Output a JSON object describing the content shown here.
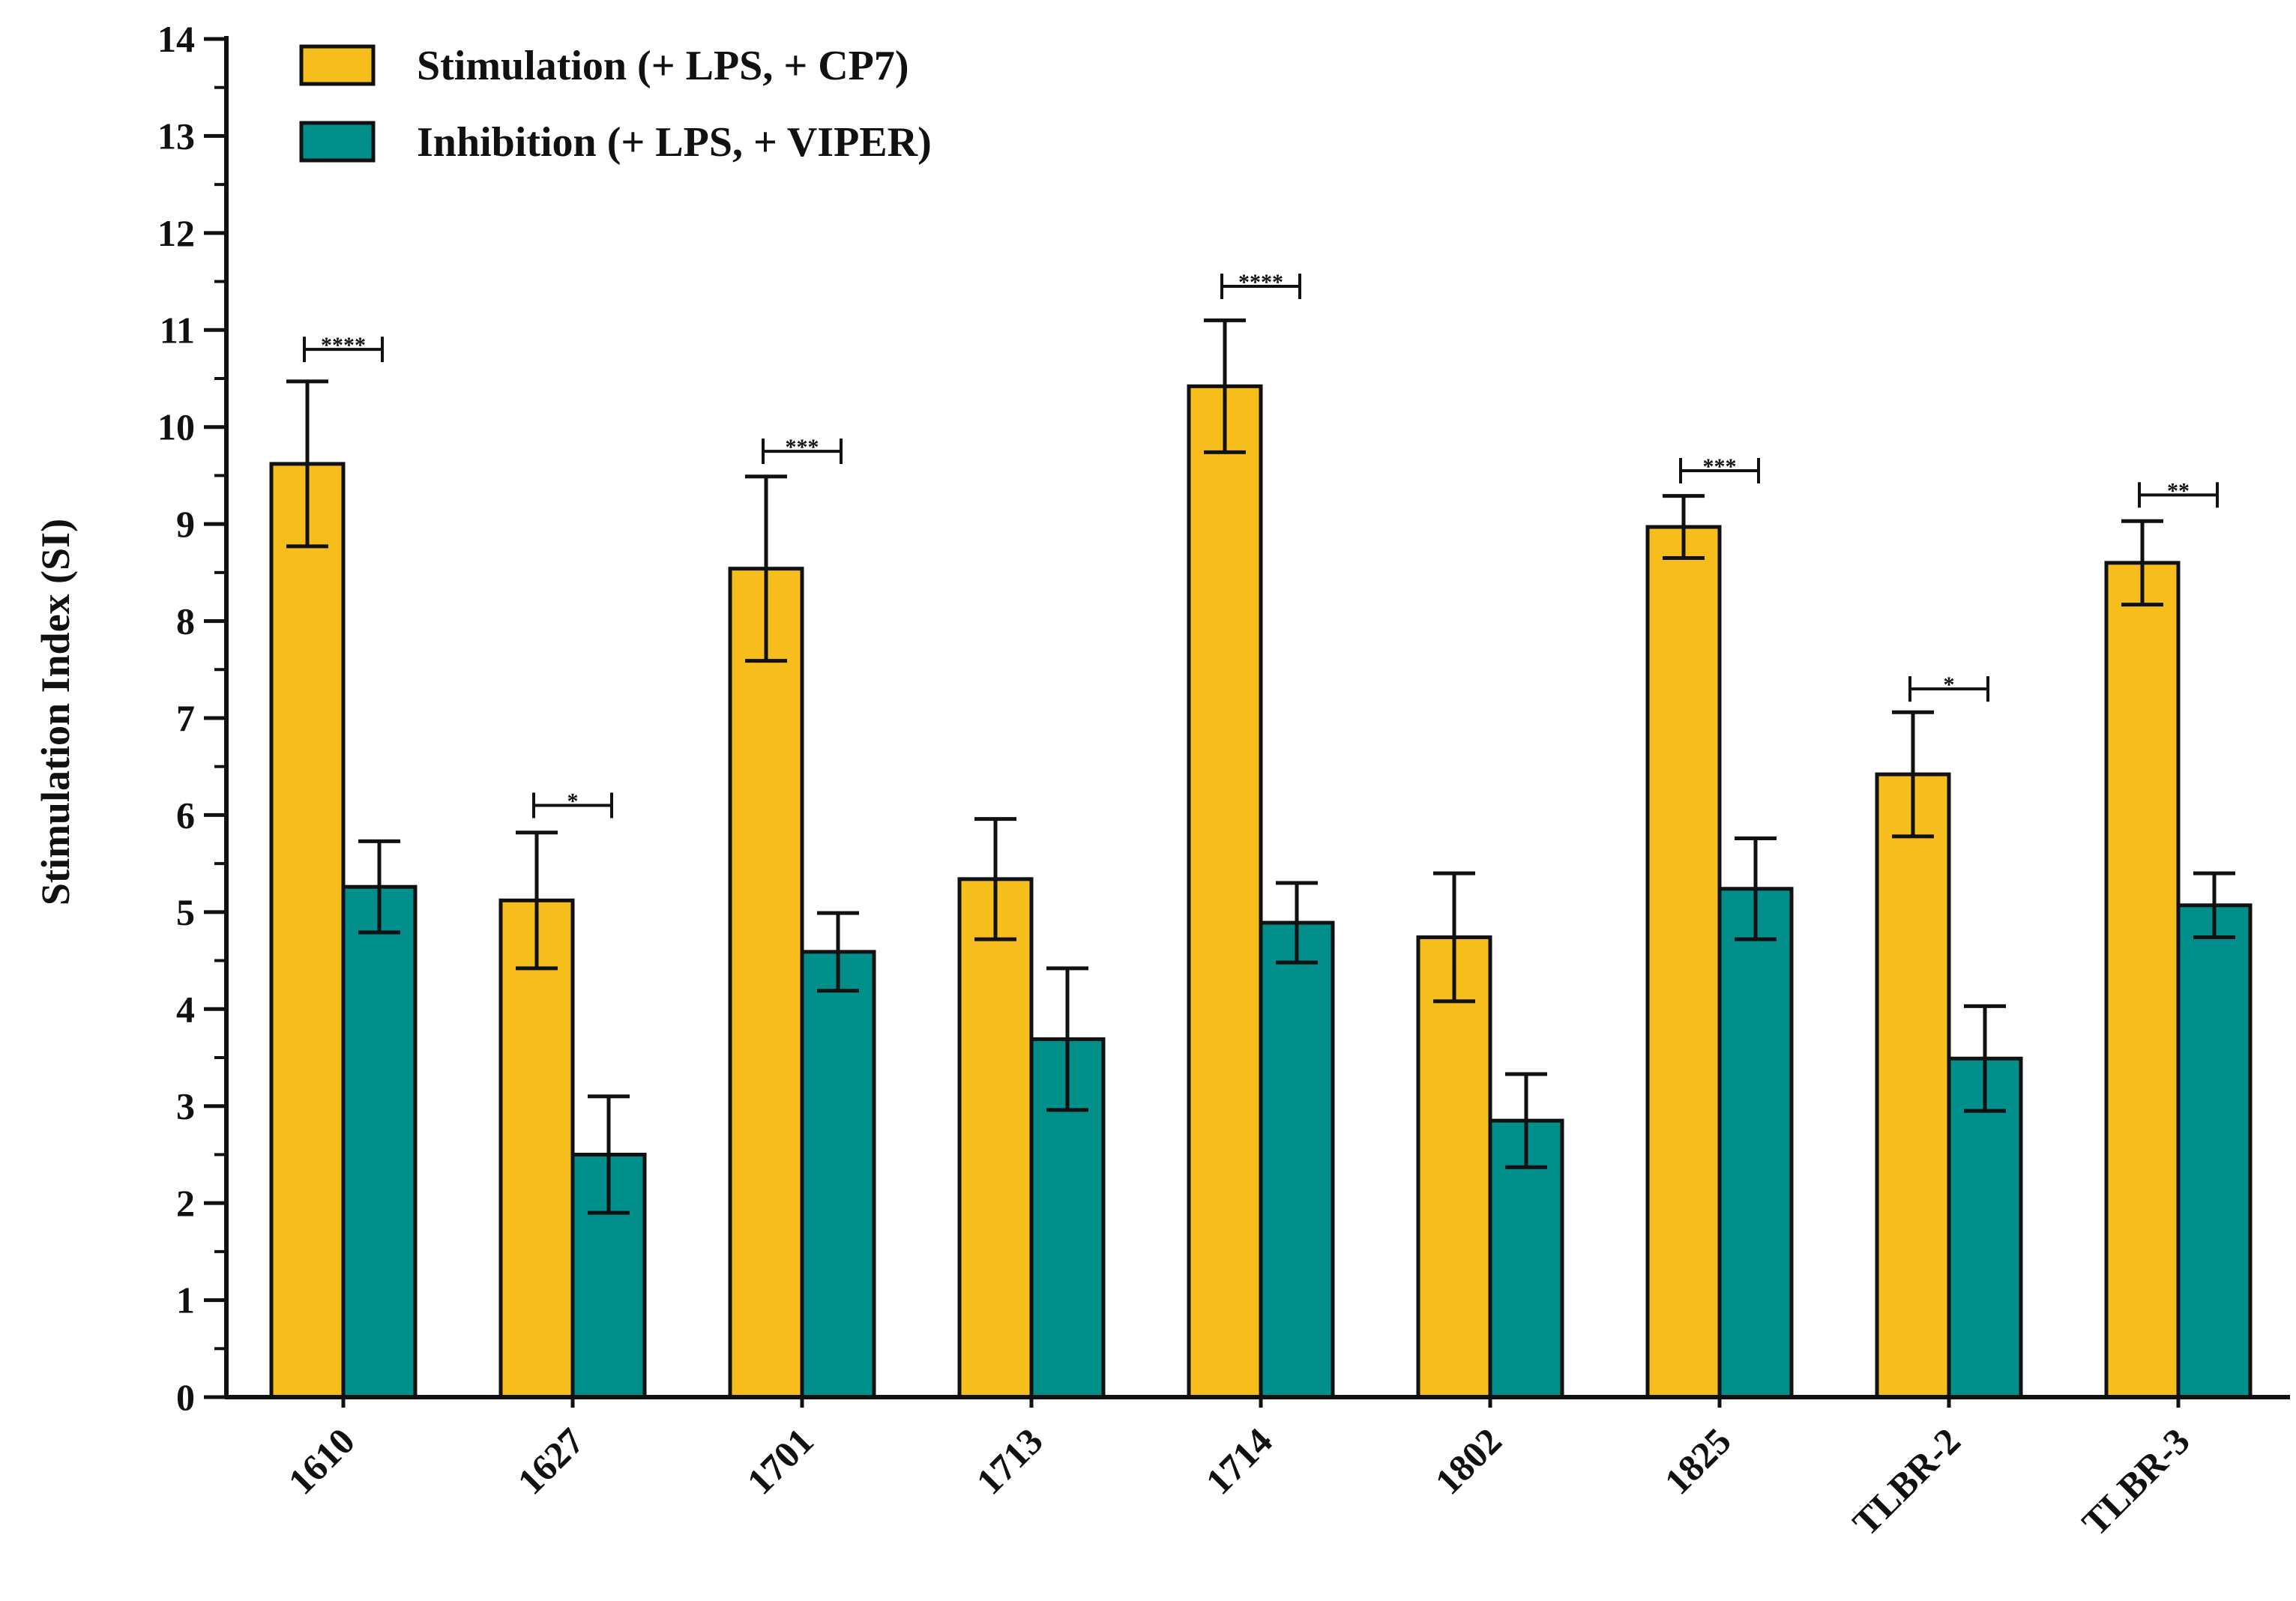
{
  "chart_data": {
    "type": "bar",
    "title": "",
    "xlabel": "",
    "ylabel": "Stimulation Index (SI)",
    "ylim": [
      0,
      14
    ],
    "yticks": [
      0,
      1,
      2,
      3,
      4,
      5,
      6,
      7,
      8,
      9,
      10,
      11,
      12,
      13,
      14
    ],
    "grid": false,
    "legend_position": "top-left",
    "categories": [
      "1610",
      "1627",
      "1701",
      "1713",
      "1714",
      "1802",
      "1825",
      "TLBR-2",
      "TLBR-3"
    ],
    "series": [
      {
        "name": "Stimulation (+ LPS, + CP7)",
        "color": "#F5BE1D",
        "values": [
          9.62,
          5.12,
          8.54,
          5.34,
          10.42,
          4.74,
          8.97,
          6.42,
          8.6
        ],
        "errors": [
          0.85,
          0.7,
          0.95,
          0.62,
          0.68,
          0.66,
          0.32,
          0.64,
          0.43
        ]
      },
      {
        "name": "Inhibition (+ LPS, + VIPER)",
        "color": "#008F8A",
        "values": [
          5.26,
          2.5,
          4.59,
          3.69,
          4.89,
          2.85,
          5.24,
          3.49,
          5.07
        ],
        "errors": [
          0.47,
          0.6,
          0.4,
          0.73,
          0.41,
          0.48,
          0.52,
          0.54,
          0.33
        ]
      }
    ],
    "significance": [
      {
        "category": "1610",
        "label": "****",
        "y": 10.8
      },
      {
        "category": "1627",
        "label": "*",
        "y": 6.1
      },
      {
        "category": "1701",
        "label": "***",
        "y": 9.75
      },
      {
        "category": "1714",
        "label": "****",
        "y": 11.45
      },
      {
        "category": "1825",
        "label": "***",
        "y": 9.55
      },
      {
        "category": "TLBR-2",
        "label": "*",
        "y": 7.3
      },
      {
        "category": "TLBR-3",
        "label": "**",
        "y": 9.3
      }
    ]
  }
}
